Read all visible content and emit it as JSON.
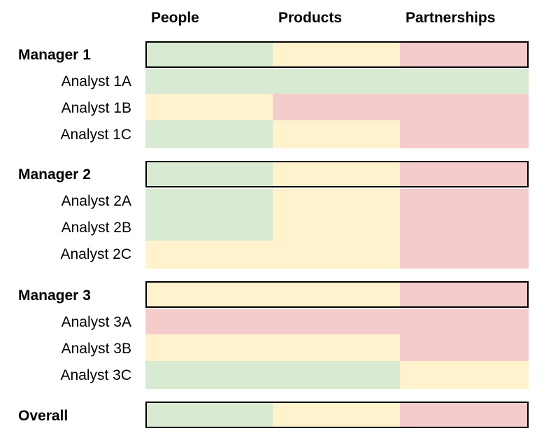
{
  "columns": [
    "People",
    "Products",
    "Partnerships"
  ],
  "colors": {
    "green": "#d9ead3",
    "yellow": "#fff2cc",
    "red": "#f4cccc"
  },
  "rows": [
    {
      "label": "Manager 1",
      "type": "manager",
      "statuses": [
        "green",
        "yellow",
        "red"
      ]
    },
    {
      "label": "Analyst 1A",
      "type": "analyst",
      "statuses": [
        "green",
        "green",
        "green"
      ]
    },
    {
      "label": "Analyst 1B",
      "type": "analyst",
      "statuses": [
        "yellow",
        "red",
        "red"
      ]
    },
    {
      "label": "Analyst 1C",
      "type": "analyst",
      "statuses": [
        "green",
        "yellow",
        "red"
      ]
    },
    {
      "label": "Manager 2",
      "type": "manager",
      "statuses": [
        "green",
        "yellow",
        "red"
      ]
    },
    {
      "label": "Analyst 2A",
      "type": "analyst",
      "statuses": [
        "green",
        "yellow",
        "red"
      ]
    },
    {
      "label": "Analyst 2B",
      "type": "analyst",
      "statuses": [
        "green",
        "yellow",
        "red"
      ]
    },
    {
      "label": "Analyst 2C",
      "type": "analyst",
      "statuses": [
        "yellow",
        "yellow",
        "red"
      ]
    },
    {
      "label": "Manager 3",
      "type": "manager",
      "statuses": [
        "yellow",
        "yellow",
        "red"
      ]
    },
    {
      "label": "Analyst 3A",
      "type": "analyst",
      "statuses": [
        "red",
        "red",
        "red"
      ]
    },
    {
      "label": "Analyst 3B",
      "type": "analyst",
      "statuses": [
        "yellow",
        "yellow",
        "red"
      ]
    },
    {
      "label": "Analyst 3C",
      "type": "analyst",
      "statuses": [
        "green",
        "green",
        "yellow"
      ]
    },
    {
      "label": "Overall",
      "type": "manager",
      "statuses": [
        "green",
        "yellow",
        "red"
      ]
    }
  ]
}
